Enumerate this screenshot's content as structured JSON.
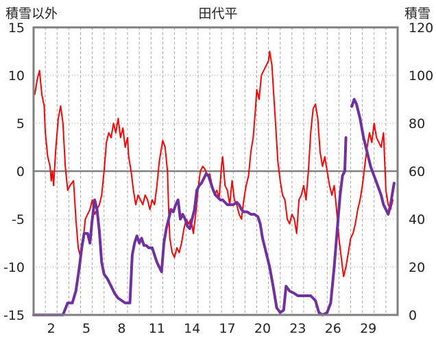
{
  "chart_data": {
    "type": "line",
    "title": "田代平",
    "y_left_label": "積雪以外",
    "y_right_label": "積雪",
    "y_left_lim": [
      -15,
      15
    ],
    "y_left_ticks": [
      15,
      10,
      5,
      0,
      -5,
      -10,
      -15
    ],
    "y_right_lim": [
      0,
      120
    ],
    "y_right_ticks": [
      120,
      100,
      80,
      60,
      40,
      20,
      0
    ],
    "x_lim": [
      0,
      31
    ],
    "x_ticks": [
      2,
      5,
      8,
      11,
      14,
      17,
      20,
      23,
      26,
      29
    ],
    "grid": {
      "vertical_dashed_every_day": true,
      "horizontal_dotted": true
    },
    "series": [
      {
        "axis": "left",
        "color": "#ff0000",
        "points": [
          [
            0.1,
            8.0
          ],
          [
            0.3,
            9.5
          ],
          [
            0.5,
            10.5
          ],
          [
            0.7,
            8.0
          ],
          [
            0.9,
            6.8
          ],
          [
            1.0,
            4.0
          ],
          [
            1.2,
            1.5
          ],
          [
            1.4,
            0.5
          ],
          [
            1.5,
            -1.0
          ],
          [
            1.6,
            0.0
          ],
          [
            1.7,
            -1.5
          ],
          [
            1.9,
            2.5
          ],
          [
            2.1,
            5.5
          ],
          [
            2.3,
            6.8
          ],
          [
            2.5,
            5.0
          ],
          [
            2.7,
            0.5
          ],
          [
            2.9,
            -2.0
          ],
          [
            3.1,
            -1.5
          ],
          [
            3.4,
            -1.0
          ],
          [
            3.6,
            -5.0
          ],
          [
            3.8,
            -8.0
          ],
          [
            4.0,
            -9.0
          ],
          [
            4.2,
            -7.5
          ],
          [
            4.4,
            -5.0
          ],
          [
            4.6,
            -4.5
          ],
          [
            4.8,
            -4.0
          ],
          [
            5.0,
            -3.0
          ],
          [
            5.2,
            -4.5
          ],
          [
            5.4,
            -4.0
          ],
          [
            5.6,
            -3.5
          ],
          [
            5.8,
            -2.5
          ],
          [
            6.0,
            0.0
          ],
          [
            6.2,
            3.0
          ],
          [
            6.4,
            4.0
          ],
          [
            6.6,
            3.5
          ],
          [
            6.8,
            5.0
          ],
          [
            7.0,
            4.0
          ],
          [
            7.2,
            5.5
          ],
          [
            7.4,
            3.5
          ],
          [
            7.6,
            4.5
          ],
          [
            7.8,
            2.5
          ],
          [
            8.0,
            3.5
          ],
          [
            8.1,
            1.5
          ],
          [
            8.3,
            0.0
          ],
          [
            8.5,
            -2.0
          ],
          [
            8.7,
            -3.5
          ],
          [
            8.9,
            -2.5
          ],
          [
            9.1,
            -3.0
          ],
          [
            9.3,
            -3.5
          ],
          [
            9.5,
            -2.5
          ],
          [
            9.7,
            -3.0
          ],
          [
            9.9,
            -4.0
          ],
          [
            10.1,
            -3.0
          ],
          [
            10.3,
            -3.5
          ],
          [
            10.5,
            -1.5
          ],
          [
            10.7,
            1.0
          ],
          [
            10.9,
            2.5
          ],
          [
            11.0,
            3.2
          ],
          [
            11.2,
            2.5
          ],
          [
            11.4,
            0.0
          ],
          [
            11.5,
            -4.0
          ],
          [
            11.6,
            -7.0
          ],
          [
            11.8,
            -8.5
          ],
          [
            12.0,
            -9.0
          ],
          [
            12.2,
            -8.0
          ],
          [
            12.4,
            -8.5
          ],
          [
            12.6,
            -7.5
          ],
          [
            12.8,
            -6.0
          ],
          [
            13.0,
            -5.0
          ],
          [
            13.2,
            -5.5
          ],
          [
            13.4,
            -5.0
          ],
          [
            13.6,
            -6.5
          ],
          [
            13.8,
            -4.5
          ],
          [
            14.0,
            -2.0
          ],
          [
            14.2,
            0.0
          ],
          [
            14.4,
            0.5
          ],
          [
            14.6,
            0.2
          ],
          [
            14.8,
            -0.5
          ],
          [
            15.0,
            -0.3
          ],
          [
            15.2,
            -1.5
          ],
          [
            15.4,
            -2.5
          ],
          [
            15.6,
            -2.0
          ],
          [
            15.8,
            -2.8
          ],
          [
            16.0,
            0.5
          ],
          [
            16.1,
            1.5
          ],
          [
            16.3,
            -1.5
          ],
          [
            16.5,
            -2.0
          ],
          [
            16.7,
            -3.5
          ],
          [
            16.9,
            -1.0
          ],
          [
            17.1,
            -3.0
          ],
          [
            17.3,
            -3.5
          ],
          [
            17.5,
            -4.5
          ],
          [
            17.7,
            -5.0
          ],
          [
            17.9,
            -3.0
          ],
          [
            18.1,
            -1.5
          ],
          [
            18.3,
            -0.5
          ],
          [
            18.5,
            2.0
          ],
          [
            18.7,
            3.5
          ],
          [
            18.9,
            6.5
          ],
          [
            19.0,
            8.5
          ],
          [
            19.2,
            7.5
          ],
          [
            19.4,
            10.0
          ],
          [
            19.6,
            10.5
          ],
          [
            19.8,
            11.0
          ],
          [
            20.0,
            11.5
          ],
          [
            20.1,
            12.5
          ],
          [
            20.3,
            11.0
          ],
          [
            20.4,
            9.0
          ],
          [
            20.6,
            5.0
          ],
          [
            20.8,
            1.0
          ],
          [
            21.0,
            -1.0
          ],
          [
            21.2,
            -2.5
          ],
          [
            21.4,
            -3.0
          ],
          [
            21.6,
            -5.0
          ],
          [
            21.8,
            -5.5
          ],
          [
            22.0,
            -4.5
          ],
          [
            22.2,
            -5.0
          ],
          [
            22.4,
            -6.5
          ],
          [
            22.6,
            -3.0
          ],
          [
            22.8,
            -2.5
          ],
          [
            23.0,
            -1.5
          ],
          [
            23.2,
            -3.0
          ],
          [
            23.4,
            0.0
          ],
          [
            23.6,
            4.0
          ],
          [
            23.8,
            6.5
          ],
          [
            24.0,
            7.0
          ],
          [
            24.2,
            5.5
          ],
          [
            24.4,
            2.0
          ],
          [
            24.6,
            0.5
          ],
          [
            24.8,
            1.5
          ],
          [
            25.0,
            0.0
          ],
          [
            25.2,
            -1.5
          ],
          [
            25.4,
            -2.5
          ],
          [
            25.6,
            -1.5
          ],
          [
            25.8,
            -4.0
          ],
          [
            26.0,
            -7.0
          ],
          [
            26.2,
            -9.0
          ],
          [
            26.4,
            -11.0
          ],
          [
            26.6,
            -10.0
          ],
          [
            26.8,
            -8.5
          ],
          [
            27.0,
            -7.0
          ],
          [
            27.2,
            -6.5
          ],
          [
            27.4,
            -5.5
          ],
          [
            27.6,
            -4.0
          ],
          [
            27.8,
            -3.0
          ],
          [
            28.0,
            -1.5
          ],
          [
            28.2,
            0.5
          ],
          [
            28.4,
            2.5
          ],
          [
            28.6,
            4.0
          ],
          [
            28.8,
            3.0
          ],
          [
            29.0,
            5.0
          ],
          [
            29.2,
            3.5
          ],
          [
            29.4,
            3.0
          ],
          [
            29.6,
            2.5
          ],
          [
            29.8,
            4.0
          ],
          [
            30.0,
            -2.0
          ],
          [
            30.2,
            -3.5
          ],
          [
            30.4,
            -4.0
          ],
          [
            30.6,
            -3.0
          ]
        ]
      },
      {
        "axis": "right",
        "color": "#7030a0",
        "segments": [
          [
            [
              0.0,
              0
            ],
            [
              2.5,
              0
            ],
            [
              2.9,
              5
            ],
            [
              3.3,
              5
            ],
            [
              3.6,
              10
            ],
            [
              3.9,
              20
            ],
            [
              4.1,
              28
            ],
            [
              4.3,
              34
            ],
            [
              4.6,
              34
            ],
            [
              4.8,
              30
            ],
            [
              5.0,
              40
            ],
            [
              5.2,
              48
            ],
            [
              5.4,
              44
            ],
            [
              5.6,
              35
            ],
            [
              5.8,
              22
            ],
            [
              6.0,
              17
            ],
            [
              6.3,
              15
            ],
            [
              6.6,
              12
            ],
            [
              6.9,
              9
            ],
            [
              7.2,
              7
            ],
            [
              7.5,
              6
            ],
            [
              7.8,
              5
            ],
            [
              8.2,
              5
            ],
            [
              8.4,
              25
            ],
            [
              8.6,
              30
            ],
            [
              8.8,
              33
            ],
            [
              9.0,
              30
            ],
            [
              9.2,
              32
            ],
            [
              9.4,
              29
            ],
            [
              9.6,
              29
            ],
            [
              9.8,
              28
            ],
            [
              10.1,
              28
            ],
            [
              10.3,
              25
            ],
            [
              10.5,
              22
            ],
            [
              10.7,
              20
            ],
            [
              10.9,
              18
            ],
            [
              11.1,
              30
            ],
            [
              11.3,
              36
            ],
            [
              11.5,
              40
            ],
            [
              11.7,
              44
            ],
            [
              11.9,
              43
            ],
            [
              12.1,
              46
            ],
            [
              12.3,
              48
            ],
            [
              12.5,
              40
            ],
            [
              12.7,
              42
            ],
            [
              12.9,
              40
            ],
            [
              13.1,
              37
            ],
            [
              13.3,
              36
            ],
            [
              13.5,
              40
            ],
            [
              13.7,
              44
            ],
            [
              13.9,
              52
            ],
            [
              14.1,
              54
            ],
            [
              14.3,
              55
            ],
            [
              14.5,
              57
            ],
            [
              14.7,
              59
            ],
            [
              14.9,
              58
            ],
            [
              15.1,
              55
            ],
            [
              15.3,
              52
            ],
            [
              15.5,
              50
            ],
            [
              15.7,
              49
            ],
            [
              15.9,
              48
            ],
            [
              16.1,
              48
            ],
            [
              16.3,
              47
            ],
            [
              16.5,
              46
            ],
            [
              16.8,
              46
            ],
            [
              17.0,
              46
            ],
            [
              17.3,
              47
            ],
            [
              17.5,
              46
            ],
            [
              17.7,
              44
            ],
            [
              17.9,
              43
            ],
            [
              18.2,
              43
            ],
            [
              18.5,
              42
            ],
            [
              18.8,
              42
            ],
            [
              19.1,
              41
            ],
            [
              19.3,
              38
            ],
            [
              19.5,
              32
            ],
            [
              19.8,
              26
            ],
            [
              20.1,
              20
            ],
            [
              20.4,
              12
            ],
            [
              20.7,
              3
            ],
            [
              21.0,
              1
            ],
            [
              21.3,
              2
            ],
            [
              21.5,
              12
            ],
            [
              21.8,
              10
            ],
            [
              22.2,
              9
            ],
            [
              22.5,
              8
            ],
            [
              22.8,
              8
            ],
            [
              23.2,
              8
            ],
            [
              23.6,
              8
            ],
            [
              24.0,
              6
            ],
            [
              24.3,
              1
            ],
            [
              24.6,
              0
            ],
            [
              25.0,
              1
            ],
            [
              25.3,
              5
            ],
            [
              25.6,
              20
            ],
            [
              25.9,
              38
            ],
            [
              26.1,
              50
            ],
            [
              26.3,
              58
            ],
            [
              26.5,
              60
            ],
            [
              26.6,
              74
            ]
          ],
          [
            [
              27.1,
              87
            ],
            [
              27.3,
              90
            ],
            [
              27.5,
              88
            ],
            [
              27.8,
              82
            ],
            [
              28.1,
              74
            ],
            [
              28.4,
              68
            ],
            [
              28.7,
              62
            ],
            [
              29.0,
              58
            ],
            [
              29.3,
              54
            ],
            [
              29.6,
              50
            ],
            [
              29.8,
              46
            ],
            [
              30.0,
              44
            ],
            [
              30.2,
              42
            ],
            [
              30.4,
              46
            ],
            [
              30.6,
              52
            ],
            [
              30.7,
              55
            ]
          ]
        ]
      }
    ]
  }
}
